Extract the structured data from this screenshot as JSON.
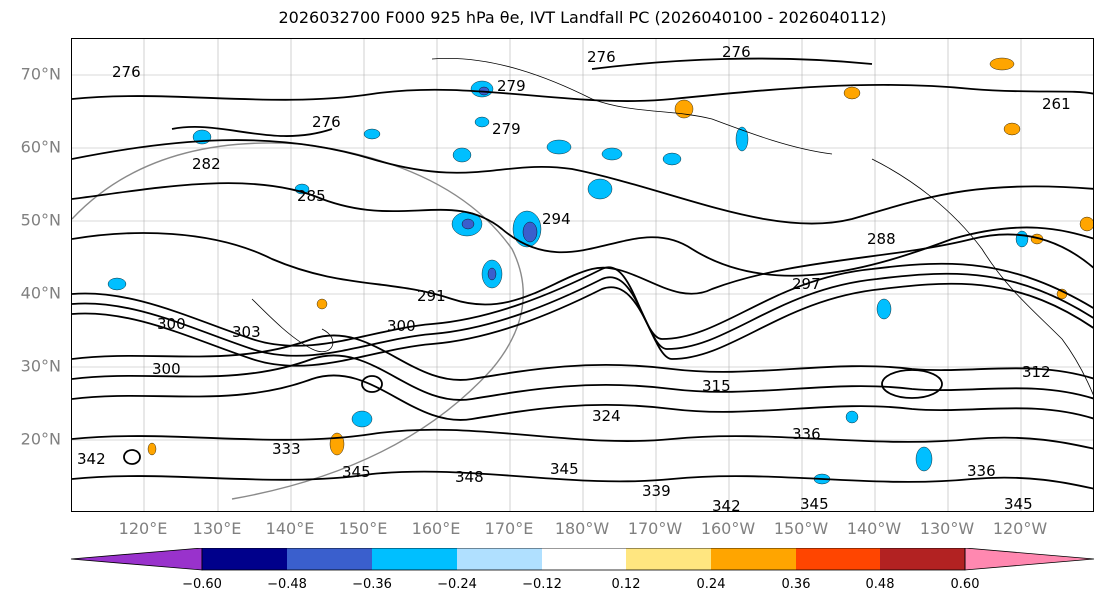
{
  "title": "2026032700 F000 925 hPa θe, IVT Landfall PC (2026040100 - 2026040112)",
  "lat_labels": [
    "70°N",
    "60°N",
    "50°N",
    "40°N",
    "30°N",
    "20°N"
  ],
  "lon_labels": [
    "120°E",
    "130°E",
    "140°E",
    "150°E",
    "160°E",
    "170°E",
    "180°W",
    "170°W",
    "160°W",
    "150°W",
    "140°W",
    "130°W",
    "120°W"
  ],
  "contour_labels": [
    "276",
    "276",
    "276",
    "279",
    "279",
    "282",
    "285",
    "288",
    "291",
    "294",
    "297",
    "300",
    "300",
    "300",
    "303",
    "312",
    "315",
    "324",
    "333",
    "336",
    "336",
    "339",
    "342",
    "342",
    "345",
    "345",
    "345",
    "345",
    "348",
    "261",
    "276"
  ],
  "colorbar": {
    "ticks": [
      "−0.60",
      "−0.48",
      "−0.36",
      "−0.24",
      "−0.12",
      "0.12",
      "0.24",
      "0.36",
      "0.48",
      "0.60"
    ],
    "colors": [
      "#9932cc",
      "#00008b",
      "#3a5fcd",
      "#00bfff",
      "#b0e0ff",
      "#ffffff",
      "#ffe680",
      "#ffa500",
      "#ff4500",
      "#b22222",
      "#ff88b0"
    ]
  },
  "colors": {
    "lat_lon_label": "#808080",
    "grid": "#808080"
  }
}
